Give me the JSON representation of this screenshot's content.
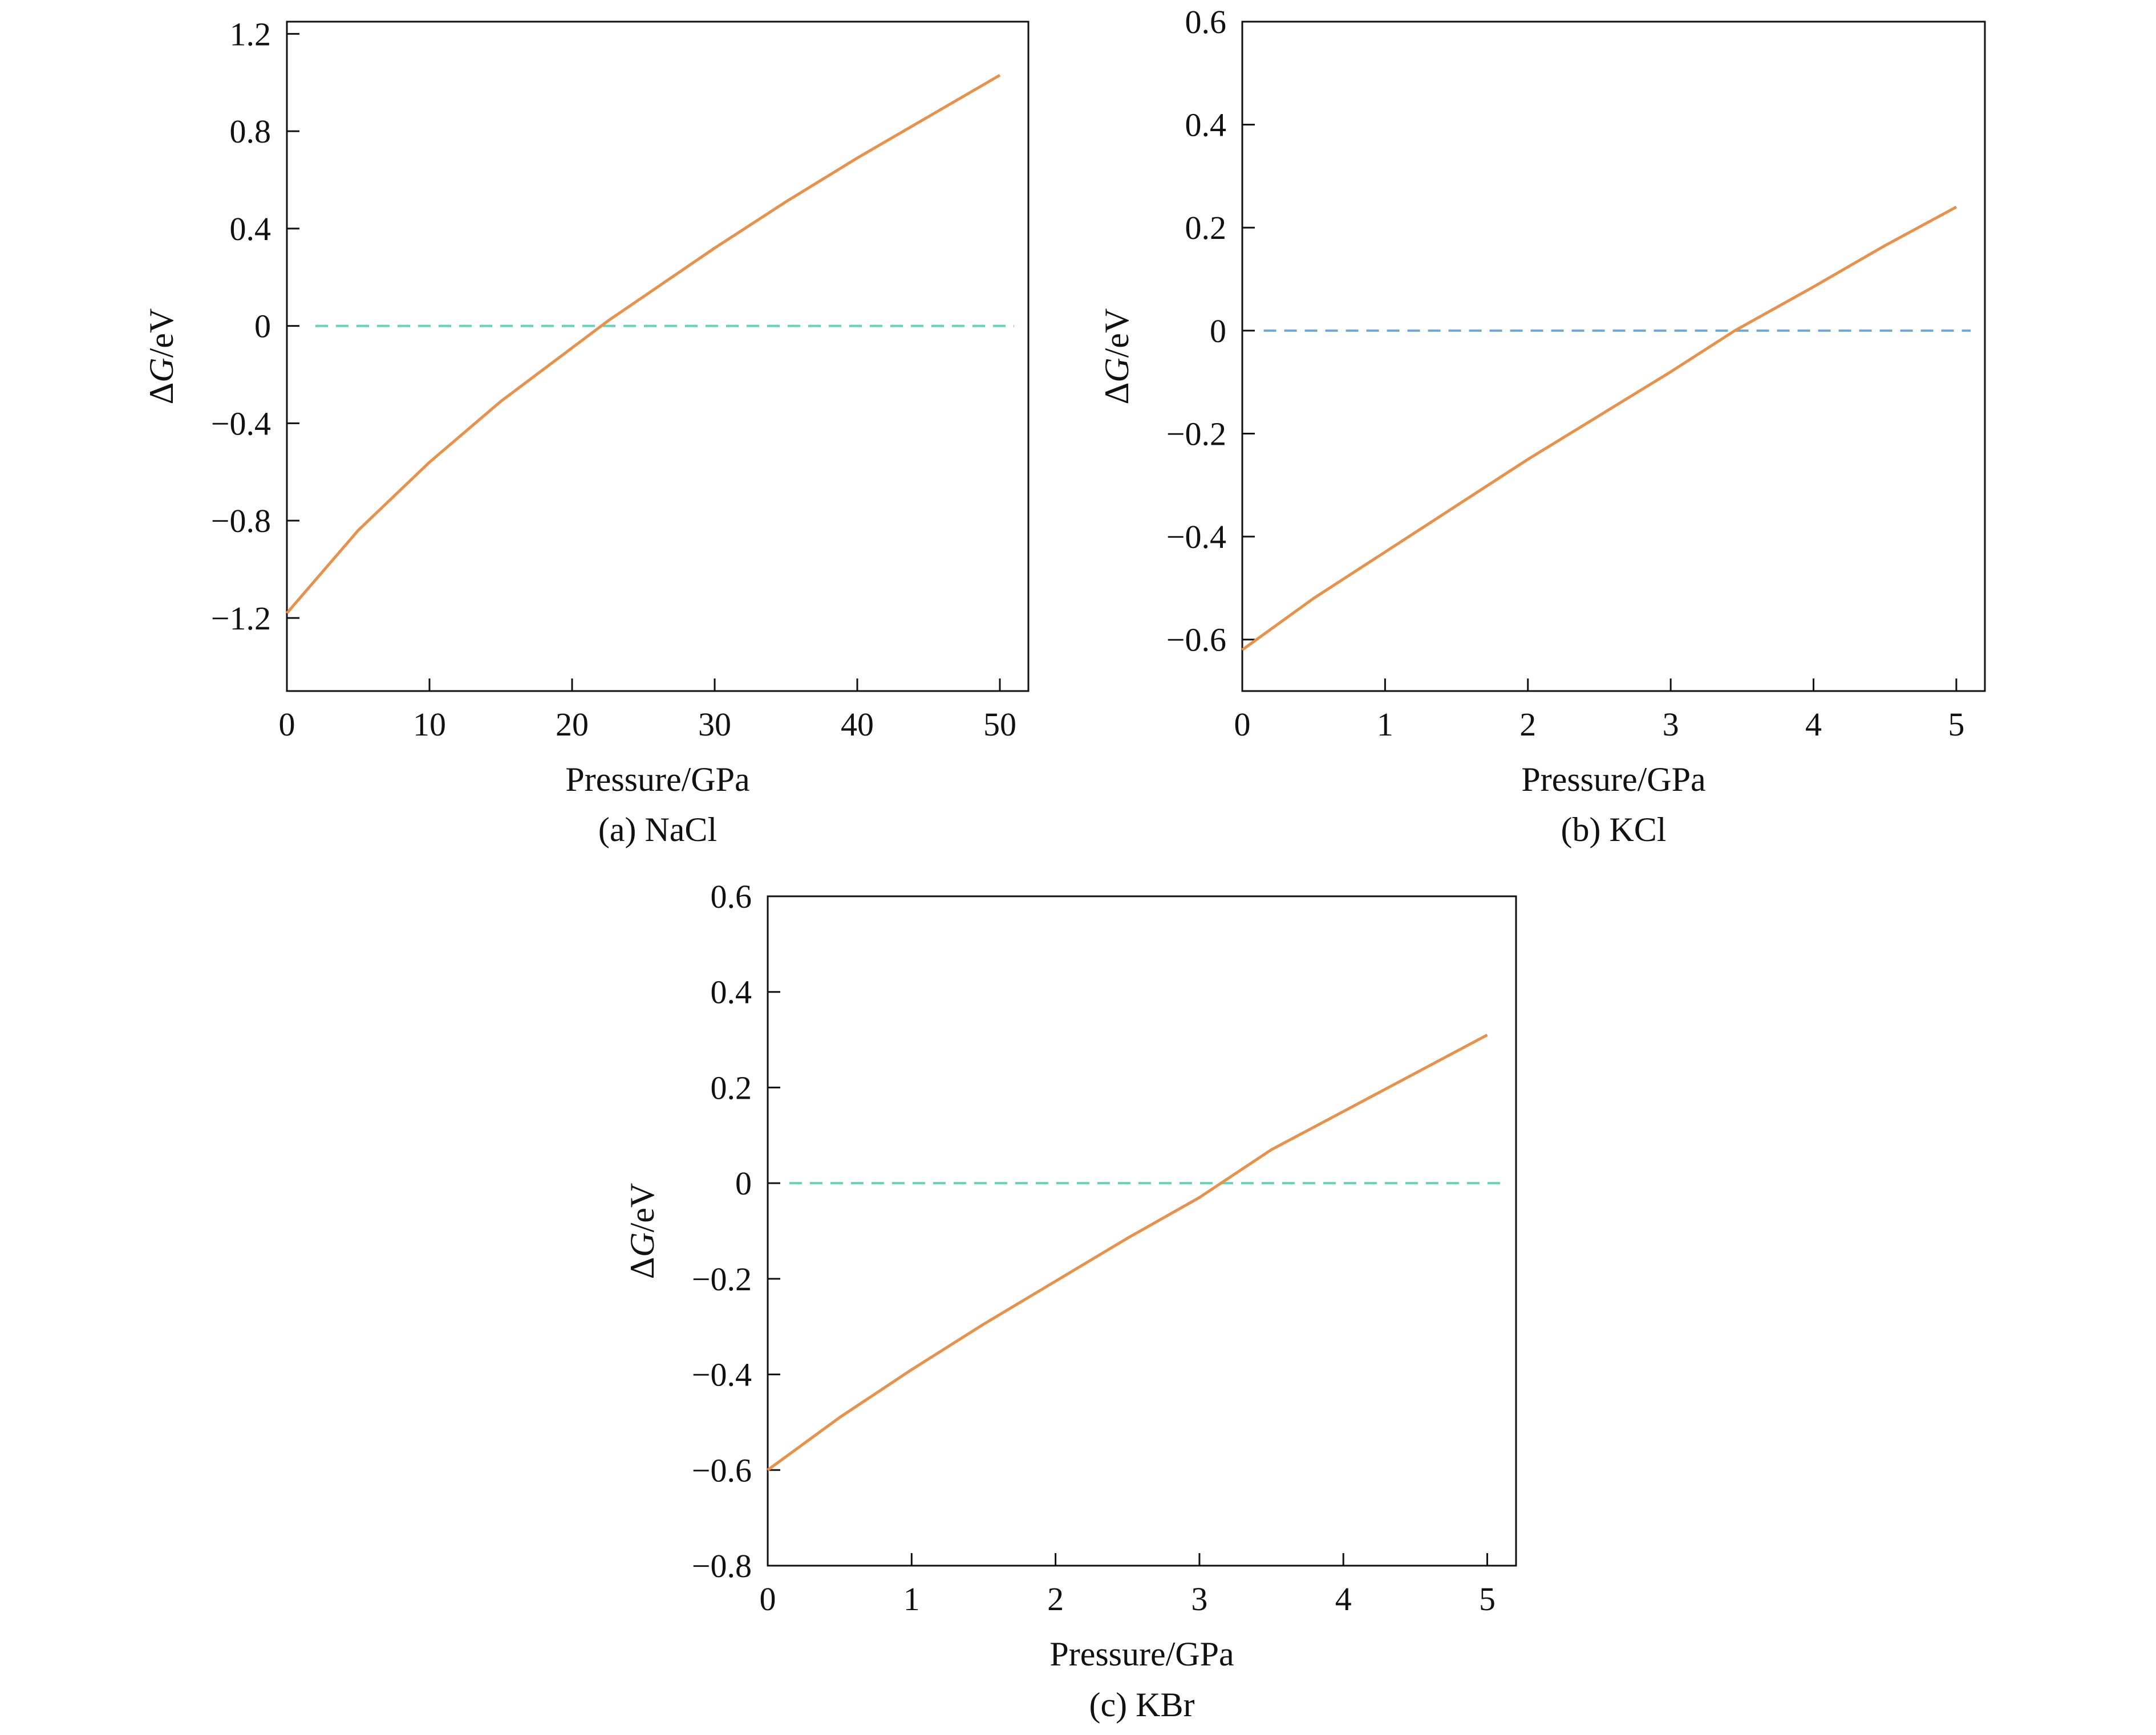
{
  "colors": {
    "curve": "#e8914a",
    "reference": "#5fd6b6",
    "reference_b": "#6fa7d8",
    "axis": "#111111"
  },
  "chart_data": [
    {
      "id": "a",
      "type": "line",
      "caption": "(a) NaCl",
      "xlabel": "Pressure/GPa",
      "ylabel": "ΔG/eV",
      "xlim": [
        0,
        52
      ],
      "ylim": [
        -1.5,
        1.25
      ],
      "xticks": [
        0,
        10,
        20,
        30,
        40,
        50
      ],
      "xtick_labels": [
        "0",
        "10",
        "20",
        "30",
        "40",
        "50"
      ],
      "yticks": [
        1.2,
        0.8,
        0.4,
        0,
        -0.4,
        -0.8,
        -1.2
      ],
      "ytick_labels": [
        "1.2",
        "0.8",
        "0.4",
        "0",
        "−0.4",
        "−0.8",
        "−1.2"
      ],
      "series": [
        {
          "name": "ΔG",
          "x": [
            0,
            5,
            10,
            15,
            20,
            22.5,
            25,
            30,
            35,
            40,
            45,
            50
          ],
          "y": [
            -1.18,
            -0.84,
            -0.56,
            -0.31,
            -0.09,
            0.02,
            0.12,
            0.32,
            0.51,
            0.69,
            0.86,
            1.03
          ]
        }
      ],
      "reference_line": {
        "y": 0,
        "x_range": [
          2,
          51
        ]
      }
    },
    {
      "id": "b",
      "type": "line",
      "caption": "(b) KCl",
      "xlabel": "Pressure/GPa",
      "ylabel": "ΔG/eV",
      "xlim": [
        0,
        5.2
      ],
      "ylim": [
        -0.7,
        0.6
      ],
      "xticks": [
        0,
        1,
        2,
        3,
        4,
        5
      ],
      "xtick_labels": [
        "0",
        "1",
        "2",
        "3",
        "4",
        "5"
      ],
      "yticks": [
        0.6,
        0.4,
        0.2,
        0,
        -0.2,
        -0.4,
        -0.6
      ],
      "ytick_labels": [
        "0.6",
        "0.4",
        "0.2",
        "0",
        "−0.2",
        "−0.4",
        "−0.6"
      ],
      "series": [
        {
          "name": "ΔG",
          "x": [
            0,
            0.5,
            1,
            1.5,
            2,
            2.5,
            3,
            3.45,
            4,
            4.5,
            5
          ],
          "y": [
            -0.62,
            -0.52,
            -0.43,
            -0.34,
            -0.25,
            -0.165,
            -0.08,
            0.0,
            0.085,
            0.165,
            0.24
          ]
        }
      ],
      "reference_line": {
        "y": 0,
        "x_range": [
          0.15,
          5.1
        ]
      }
    },
    {
      "id": "c",
      "type": "line",
      "caption": "(c) KBr",
      "xlabel": "Pressure/GPa",
      "ylabel": "ΔG/eV",
      "xlim": [
        0,
        5.2
      ],
      "ylim": [
        -0.8,
        0.6
      ],
      "xticks": [
        0,
        1,
        2,
        3,
        4,
        5
      ],
      "xtick_labels": [
        "0",
        "1",
        "2",
        "3",
        "4",
        "5"
      ],
      "yticks": [
        0.6,
        0.4,
        0.2,
        0,
        -0.2,
        -0.4,
        -0.6,
        -0.8
      ],
      "ytick_labels": [
        "0.6",
        "0.4",
        "0.2",
        "0",
        "−0.2",
        "−0.4",
        "−0.6",
        "−0.8"
      ],
      "series": [
        {
          "name": "ΔG",
          "x": [
            0,
            0.5,
            1,
            1.5,
            2,
            2.5,
            3,
            3.15,
            3.5,
            4,
            4.5,
            5
          ],
          "y": [
            -0.6,
            -0.49,
            -0.39,
            -0.295,
            -0.205,
            -0.115,
            -0.03,
            0.0,
            0.07,
            0.15,
            0.23,
            0.31
          ]
        }
      ],
      "reference_line": {
        "y": 0,
        "x_range": [
          0.15,
          5.1
        ]
      }
    }
  ]
}
